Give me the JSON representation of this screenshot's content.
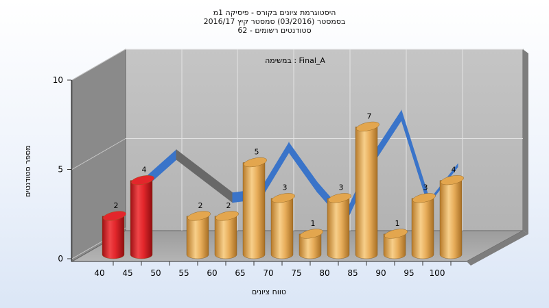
{
  "titles": {
    "line1": "היסטוגרמת ציונים בקורס - פיסיקה 1מ",
    "line2": "בסמסטר (03/2016) סמסטר קיץ 2016/17",
    "line3": "סטודנטים רשומים - 62"
  },
  "chart_data": {
    "type": "bar",
    "title": "היסטוגרמת ציונים בקורס - פיסיקה 1מ",
    "subtitle": "במשימה : Final_A",
    "xlabel": "טווח ציונים",
    "ylabel": "מספר סטודנטים",
    "ylim": [
      0,
      10
    ],
    "yticks": [
      "0",
      "5",
      "10"
    ],
    "xticks": [
      "40",
      "45",
      "50",
      "55",
      "60",
      "65",
      "70",
      "75",
      "80",
      "85",
      "90",
      "95",
      "100"
    ],
    "bars": [
      {
        "x": 40,
        "value": 2,
        "label": "2",
        "color": "#e3262b"
      },
      {
        "x": 45,
        "value": 4,
        "label": "4",
        "color": "#e3262b"
      },
      {
        "x": 55,
        "value": 2,
        "label": "2",
        "color": "#e3a64e"
      },
      {
        "x": 60,
        "value": 2,
        "label": "2",
        "color": "#e3a64e"
      },
      {
        "x": 65,
        "value": 5,
        "label": "5",
        "color": "#e3a64e"
      },
      {
        "x": 70,
        "value": 3,
        "label": "3",
        "color": "#e3a64e"
      },
      {
        "x": 75,
        "value": 1,
        "label": "1",
        "color": "#e3a64e"
      },
      {
        "x": 80,
        "value": 3,
        "label": "3",
        "color": "#e3a64e"
      },
      {
        "x": 85,
        "value": 7,
        "label": "7",
        "color": "#e3a64e"
      },
      {
        "x": 90,
        "value": 1,
        "label": "1",
        "color": "#e3a64e"
      },
      {
        "x": 95,
        "value": 3,
        "label": "3",
        "color": "#e3a64e"
      },
      {
        "x": 100,
        "value": 4,
        "label": "4",
        "color": "#e3a64e"
      }
    ],
    "trend": {
      "x": [
        45,
        50,
        55,
        60,
        65,
        70,
        75,
        80,
        85,
        90,
        95,
        100
      ],
      "y": [
        4,
        5.4,
        4.2,
        3,
        3.2,
        5.8,
        3.6,
        1.8,
        5.2,
        7.6,
        2.6,
        4.6
      ],
      "color": "#3a74c9",
      "back_color": "#686868"
    },
    "grid": true,
    "style": "3d"
  }
}
